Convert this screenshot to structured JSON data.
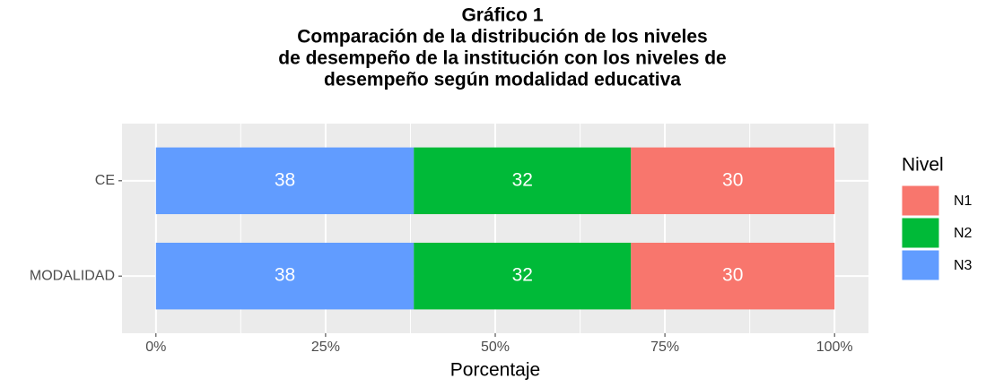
{
  "chart_data": {
    "type": "stacked_barh",
    "title": [
      "Gráfico 1",
      "Comparación de la distribución de los niveles",
      "de desempeño de la institución con los niveles de",
      "desempeño según modalidad educativa"
    ],
    "categories": [
      "CE",
      "MODALIDAD"
    ],
    "series": [
      {
        "name": "N3",
        "color": "#619CFF",
        "values": [
          38,
          38
        ]
      },
      {
        "name": "N2",
        "color": "#00BA38",
        "values": [
          32,
          32
        ]
      },
      {
        "name": "N1",
        "color": "#F8766D",
        "values": [
          30,
          30
        ]
      }
    ],
    "xlim": [
      -5,
      105
    ],
    "xticks": [
      {
        "value": 0,
        "label": "0%"
      },
      {
        "value": 25,
        "label": "25%"
      },
      {
        "value": 50,
        "label": "50%"
      },
      {
        "value": 75,
        "label": "75%"
      },
      {
        "value": 100,
        "label": "100%"
      }
    ],
    "minor_xticks": [
      12.5,
      37.5,
      62.5,
      87.5
    ],
    "xlabel": "Porcentaje",
    "legend_title": "Nivel",
    "legend": "right",
    "grid": true
  }
}
